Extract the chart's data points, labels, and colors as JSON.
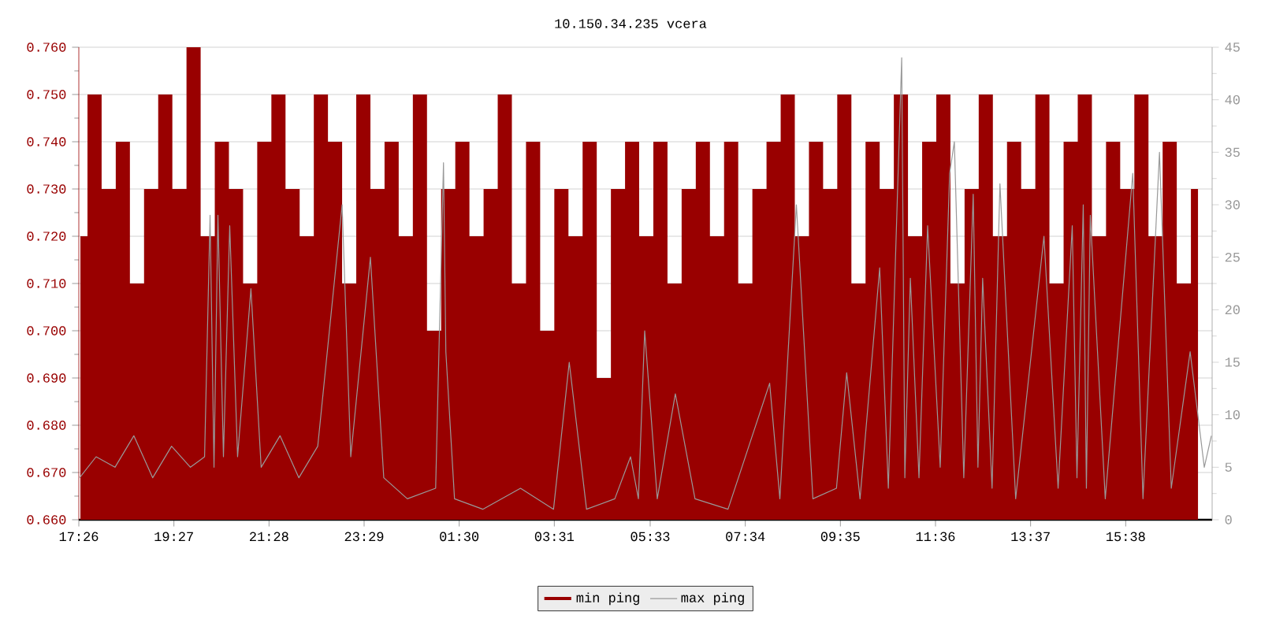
{
  "chart_data": {
    "type": "area",
    "title": "10.150.34.235 vcera",
    "xlim": [
      "--01-01T17:26",
      "--01-02T17:28"
    ],
    "xticks": [
      {
        "value": "--01-01T17:26",
        "label": "17:26"
      },
      {
        "value": "--01-01T19:27",
        "label": "19:27"
      },
      {
        "value": "--01-01T21:28",
        "label": "21:28"
      },
      {
        "value": "--01-01T23:29",
        "label": "23:29"
      },
      {
        "value": "--01-02T01:30",
        "label": "01:30"
      },
      {
        "value": "--01-02T03:31",
        "label": "03:31"
      },
      {
        "value": "--01-02T05:33",
        "label": "05:33"
      },
      {
        "value": "--01-02T07:34",
        "label": "07:34"
      },
      {
        "value": "--01-02T09:35",
        "label": "09:35"
      },
      {
        "value": "--01-02T11:36",
        "label": "11:36"
      },
      {
        "value": "--01-02T13:37",
        "label": "13:37"
      },
      {
        "value": "--01-02T15:38",
        "label": "15:38"
      }
    ],
    "ylim": [
      0.66,
      0.76
    ],
    "yticks": [
      {
        "value": 0.66,
        "label": "0.660"
      },
      {
        "value": 0.67,
        "label": "0.670"
      },
      {
        "value": 0.68,
        "label": "0.680"
      },
      {
        "value": 0.69,
        "label": "0.690"
      },
      {
        "value": 0.7,
        "label": "0.700"
      },
      {
        "value": 0.71,
        "label": "0.710"
      },
      {
        "value": 0.72,
        "label": "0.720"
      },
      {
        "value": 0.73,
        "label": "0.730"
      },
      {
        "value": 0.74,
        "label": "0.740"
      },
      {
        "value": 0.75,
        "label": "0.750"
      },
      {
        "value": 0.76,
        "label": "0.760"
      }
    ],
    "y2lim": [
      0,
      45
    ],
    "y2ticks": [
      0,
      5,
      10,
      15,
      20,
      25,
      30,
      35,
      40,
      45
    ],
    "grid": "y",
    "legend": "bottom",
    "series": [
      {
        "name": "min ping",
        "axis": "y",
        "color": "#990000",
        "x": [
          "--01-01T17:28",
          "--01-01T17:46",
          "--01-01T18:04",
          "--01-01T18:22",
          "--01-01T18:40",
          "--01-01T18:58",
          "--01-01T19:16",
          "--01-01T19:34",
          "--01-01T19:52",
          "--01-01T20:10",
          "--01-01T20:28",
          "--01-01T20:46",
          "--01-01T21:04",
          "--01-01T21:22",
          "--01-01T21:40",
          "--01-01T21:58",
          "--01-01T22:16",
          "--01-01T22:34",
          "--01-01T22:52",
          "--01-01T23:10",
          "--01-01T23:28",
          "--01-01T23:46",
          "--01-02T00:04",
          "--01-02T00:22",
          "--01-02T00:40",
          "--01-02T00:58",
          "--01-02T01:16",
          "--01-02T01:34",
          "--01-02T01:52",
          "--01-02T02:10",
          "--01-02T02:28",
          "--01-02T02:46",
          "--01-02T03:04",
          "--01-02T03:22",
          "--01-02T03:40",
          "--01-02T03:58",
          "--01-02T04:16",
          "--01-02T04:34",
          "--01-02T04:52",
          "--01-02T05:10",
          "--01-02T05:28",
          "--01-02T05:46",
          "--01-02T06:04",
          "--01-02T06:22",
          "--01-02T06:40",
          "--01-02T06:58",
          "--01-02T07:16",
          "--01-02T07:34",
          "--01-02T07:52",
          "--01-02T08:10",
          "--01-02T08:28",
          "--01-02T08:46",
          "--01-02T09:04",
          "--01-02T09:22",
          "--01-02T09:40",
          "--01-02T09:58",
          "--01-02T10:16",
          "--01-02T10:34",
          "--01-02T10:52",
          "--01-02T11:10",
          "--01-02T11:28",
          "--01-02T11:46",
          "--01-02T12:04",
          "--01-02T12:22",
          "--01-02T12:40",
          "--01-02T12:58",
          "--01-02T13:16",
          "--01-02T13:34",
          "--01-02T13:52",
          "--01-02T14:10",
          "--01-02T14:28",
          "--01-02T14:46",
          "--01-02T15:04",
          "--01-02T15:22",
          "--01-02T15:40",
          "--01-02T15:58",
          "--01-02T16:16",
          "--01-02T16:34",
          "--01-02T16:52",
          "--01-02T17:10"
        ],
        "values": [
          0.72,
          0.75,
          0.73,
          0.74,
          0.71,
          0.73,
          0.75,
          0.73,
          0.76,
          0.72,
          0.74,
          0.73,
          0.71,
          0.74,
          0.75,
          0.73,
          0.72,
          0.75,
          0.74,
          0.71,
          0.75,
          0.73,
          0.74,
          0.72,
          0.75,
          0.7,
          0.73,
          0.74,
          0.72,
          0.73,
          0.75,
          0.71,
          0.74,
          0.7,
          0.73,
          0.72,
          0.74,
          0.69,
          0.73,
          0.74,
          0.72,
          0.74,
          0.71,
          0.73,
          0.74,
          0.72,
          0.74,
          0.71,
          0.73,
          0.74,
          0.75,
          0.72,
          0.74,
          0.73,
          0.75,
          0.71,
          0.74,
          0.73,
          0.75,
          0.72,
          0.74,
          0.75,
          0.71,
          0.73,
          0.75,
          0.72,
          0.74,
          0.73,
          0.75,
          0.71,
          0.74,
          0.75,
          0.72,
          0.74,
          0.73,
          0.75,
          0.72,
          0.74,
          0.71,
          0.73
        ]
      },
      {
        "name": "max ping",
        "type": "line",
        "axis": "y2",
        "color": "#999999",
        "x": [
          "--01-01T17:27",
          "--01-01T17:48",
          "--01-01T18:12",
          "--01-01T18:36",
          "--01-01T19:00",
          "--01-01T19:24",
          "--01-01T19:48",
          "--01-01T20:06",
          "--01-01T20:13",
          "--01-01T20:18",
          "--01-01T20:23",
          "--01-01T20:30",
          "--01-01T20:38",
          "--01-01T20:48",
          "--01-01T21:05",
          "--01-01T21:18",
          "--01-01T21:42",
          "--01-01T22:06",
          "--01-01T22:30",
          "--01-01T23:01",
          "--01-01T23:12",
          "--01-01T23:37",
          "--01-01T23:54",
          "--01-02T00:24",
          "--01-02T01:00",
          "--01-02T01:10",
          "--01-02T01:13",
          "--01-02T01:24",
          "--01-02T02:00",
          "--01-02T02:48",
          "--01-02T03:30",
          "--01-02T03:50",
          "--01-02T04:12",
          "--01-02T04:48",
          "--01-02T05:08",
          "--01-02T05:18",
          "--01-02T05:26",
          "--01-02T05:42",
          "--01-02T06:05",
          "--01-02T06:30",
          "--01-02T07:12",
          "--01-02T08:05",
          "--01-02T08:18",
          "--01-02T08:39",
          "--01-02T09:00",
          "--01-02T09:30",
          "--01-02T09:43",
          "--01-02T10:00",
          "--01-02T10:25",
          "--01-02T10:36",
          "--01-02T10:53",
          "--01-02T10:57",
          "--01-02T11:04",
          "--01-02T11:15",
          "--01-02T11:26",
          "--01-02T11:42",
          "--01-02T11:54",
          "--01-02T12:00",
          "--01-02T12:12",
          "--01-02T12:24",
          "--01-02T12:30",
          "--01-02T12:36",
          "--01-02T12:48",
          "--01-02T12:58",
          "--01-02T13:18",
          "--01-02T13:54",
          "--01-02T14:12",
          "--01-02T14:30",
          "--01-02T14:36",
          "--01-02T14:44",
          "--01-02T14:48",
          "--01-02T14:53",
          "--01-02T15:12",
          "--01-02T15:47",
          "--01-02T16:00",
          "--01-02T16:21",
          "--01-02T16:36",
          "--01-02T17:00",
          "--01-02T17:18",
          "--01-02T17:27"
        ],
        "values": [
          4,
          6,
          5,
          8,
          4,
          7,
          5,
          6,
          29,
          5,
          29,
          6,
          28,
          6,
          22,
          5,
          8,
          4,
          7,
          30,
          6,
          25,
          4,
          2,
          3,
          34,
          16,
          2,
          1,
          3,
          1,
          15,
          1,
          2,
          6,
          2,
          18,
          2,
          12,
          2,
          1,
          13,
          2,
          30,
          2,
          3,
          14,
          2,
          24,
          3,
          44,
          4,
          23,
          4,
          28,
          5,
          33,
          36,
          4,
          31,
          5,
          23,
          3,
          32,
          2,
          27,
          3,
          28,
          4,
          30,
          3,
          29,
          2,
          33,
          2,
          35,
          3,
          16,
          5,
          8
        ]
      }
    ]
  }
}
